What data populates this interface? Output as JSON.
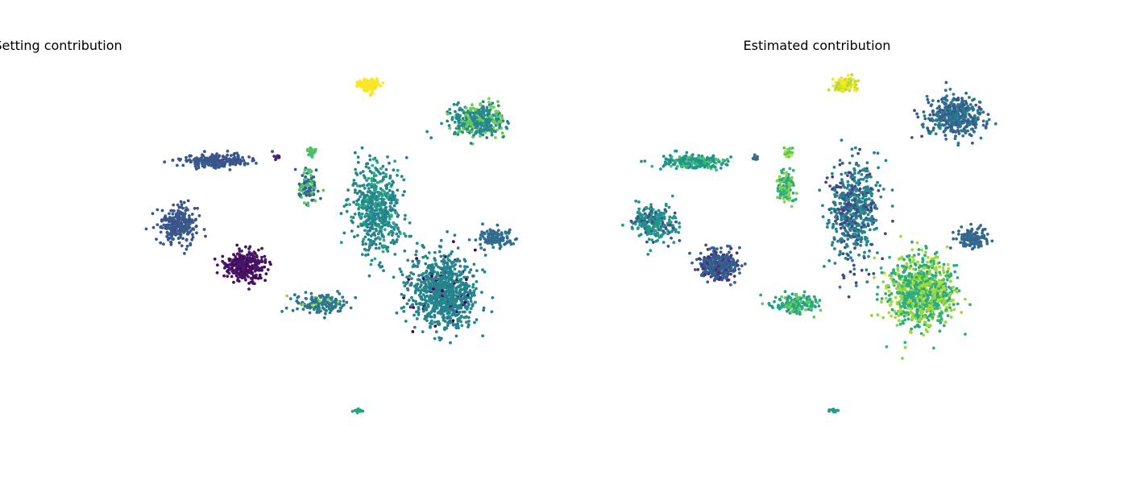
{
  "chart_data": [
    {
      "type": "scatter",
      "title": "Setting contribution",
      "colormap": "viridis",
      "axes_visible": false,
      "grid": false,
      "legend": "none",
      "clusters": [
        {
          "name": "top-yellow",
          "center": [
            457,
            106
          ],
          "spread": [
            11,
            7
          ],
          "n": 110,
          "value": 1.0
        },
        {
          "name": "top-right",
          "center": [
            593,
            150
          ],
          "spread": [
            25,
            16
          ],
          "n": 420,
          "value": 0.47,
          "value2": 0.77,
          "mix": 0.35
        },
        {
          "name": "left-band",
          "center": [
            268,
            200
          ],
          "spread": [
            34,
            8
          ],
          "n": 210,
          "value": 0.27,
          "value2": 0.55,
          "mix": 0.0
        },
        {
          "name": "small-dot-a",
          "center": [
            344,
            195
          ],
          "spread": [
            3,
            3
          ],
          "n": 12,
          "value": 0.1
        },
        {
          "name": "small-green",
          "center": [
            387,
            190
          ],
          "spread": [
            5,
            5
          ],
          "n": 30,
          "value": 0.72
        },
        {
          "name": "mid-stack",
          "center": [
            384,
            232
          ],
          "spread": [
            9,
            17
          ],
          "n": 110,
          "value": 0.32,
          "value2": 0.72,
          "mix": 0.45
        },
        {
          "name": "central-hourglass",
          "center": [
            467,
            260
          ],
          "spread": [
            25,
            48
          ],
          "n": 560,
          "value": 0.45,
          "value2": 0.6,
          "mix": 0.25
        },
        {
          "name": "left-blob",
          "center": [
            220,
            279
          ],
          "spread": [
            20,
            19
          ],
          "n": 260,
          "value": 0.27
        },
        {
          "name": "purple-blob",
          "center": [
            304,
            330
          ],
          "spread": [
            20,
            16
          ],
          "n": 300,
          "value": 0.05
        },
        {
          "name": "bottom-mid",
          "center": [
            397,
            377
          ],
          "spread": [
            26,
            10
          ],
          "n": 160,
          "value": 0.4,
          "value2": 0.85,
          "mix": 0.12
        },
        {
          "name": "big-right",
          "center": [
            551,
            362
          ],
          "spread": [
            33,
            36
          ],
          "n": 900,
          "value": 0.45,
          "value2": 0.0,
          "mix": 0.06
        },
        {
          "name": "right-small",
          "center": [
            616,
            296
          ],
          "spread": [
            16,
            10
          ],
          "n": 130,
          "value": 0.35
        },
        {
          "name": "bottom-stroke",
          "center": [
            444,
            510
          ],
          "spread": [
            5,
            2
          ],
          "n": 20,
          "value": 0.58
        }
      ]
    },
    {
      "type": "scatter",
      "title": "Estimated contribution",
      "colormap": "viridis",
      "axes_visible": false,
      "grid": false,
      "legend": "none",
      "clusters": [
        {
          "name": "top-yellow",
          "center": [
            1047,
            106
          ],
          "spread": [
            11,
            7
          ],
          "n": 110,
          "value": 0.9,
          "value2": 1.0,
          "mix": 0.5
        },
        {
          "name": "top-right",
          "center": [
            1186,
            145
          ],
          "spread": [
            28,
            20
          ],
          "n": 420,
          "value": 0.4,
          "value2": 0.28,
          "mix": 0.4
        },
        {
          "name": "left-band",
          "center": [
            860,
            201
          ],
          "spread": [
            34,
            8
          ],
          "n": 210,
          "value": 0.52,
          "value2": 0.7,
          "mix": 0.3
        },
        {
          "name": "small-dot-a",
          "center": [
            937,
            195
          ],
          "spread": [
            3,
            3
          ],
          "n": 12,
          "value": 0.35
        },
        {
          "name": "small-green",
          "center": [
            979,
            190
          ],
          "spread": [
            5,
            5
          ],
          "n": 30,
          "value": 0.75,
          "value2": 0.9,
          "mix": 0.4
        },
        {
          "name": "mid-stack",
          "center": [
            975,
            232
          ],
          "spread": [
            9,
            17
          ],
          "n": 110,
          "value": 0.62,
          "value2": 0.8,
          "mix": 0.4
        },
        {
          "name": "central-hourglass",
          "center": [
            1060,
            260
          ],
          "spread": [
            25,
            48
          ],
          "n": 560,
          "value": 0.45,
          "value2": 0.22,
          "mix": 0.35
        },
        {
          "name": "left-blob",
          "center": [
            812,
            279
          ],
          "spread": [
            20,
            19
          ],
          "n": 260,
          "value": 0.52,
          "value2": 0.25,
          "mix": 0.3
        },
        {
          "name": "purple-blob",
          "center": [
            893,
            330
          ],
          "spread": [
            20,
            16
          ],
          "n": 300,
          "value": 0.3,
          "value2": 0.15,
          "mix": 0.35
        },
        {
          "name": "bottom-mid",
          "center": [
            989,
            377
          ],
          "spread": [
            26,
            10
          ],
          "n": 160,
          "value": 0.58,
          "value2": 0.75,
          "mix": 0.3
        },
        {
          "name": "big-right",
          "center": [
            1143,
            362
          ],
          "spread": [
            33,
            36
          ],
          "n": 900,
          "value": 0.62,
          "value2": 0.85,
          "mix": 0.45
        },
        {
          "name": "right-small",
          "center": [
            1207,
            296
          ],
          "spread": [
            16,
            10
          ],
          "n": 130,
          "value": 0.33
        },
        {
          "name": "bottom-stroke",
          "center": [
            1036,
            510
          ],
          "spread": [
            5,
            2
          ],
          "n": 20,
          "value": 0.55
        }
      ]
    }
  ]
}
